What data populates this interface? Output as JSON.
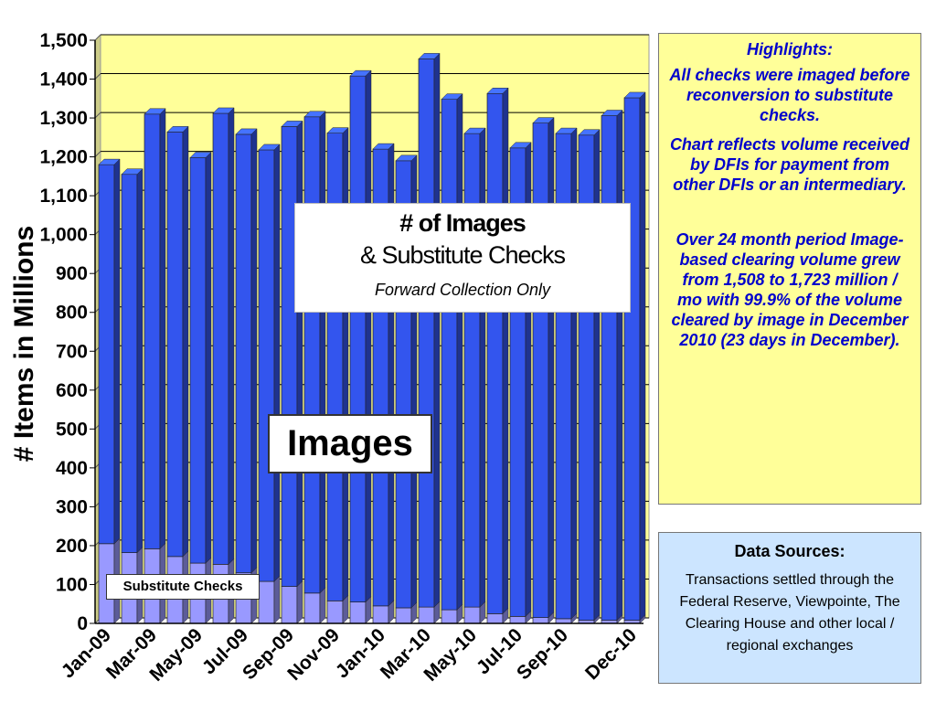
{
  "chart_data": {
    "type": "bar",
    "stacked": true,
    "categories": [
      "Jan-09",
      "Feb-09",
      "Mar-09",
      "Apr-09",
      "May-09",
      "Jun-09",
      "Jul-09",
      "Aug-09",
      "Sep-09",
      "Oct-09",
      "Nov-09",
      "Dec-09",
      "Jan-10",
      "Feb-10",
      "Mar-10",
      "Apr-10",
      "May-10",
      "Jun-10",
      "Jul-10",
      "Aug-10",
      "Sep-10",
      "Oct-10",
      "Nov-10",
      "Dec-10"
    ],
    "x_tick_labels": [
      "Jan-09",
      "Mar-09",
      "May-09",
      "Jul-09",
      "Sep-09",
      "Nov-09",
      "Jan-10",
      "Mar-10",
      "May-10",
      "Jul-10",
      "Sep-10",
      "Dec-10"
    ],
    "x_tick_indices": [
      0,
      2,
      4,
      6,
      8,
      10,
      12,
      14,
      16,
      18,
      20,
      23
    ],
    "series": [
      {
        "name": "Substitute Checks",
        "color": "#9999ff",
        "values": [
          205,
          182,
          192,
          172,
          155,
          152,
          130,
          108,
          95,
          78,
          58,
          55,
          45,
          40,
          42,
          35,
          42,
          25,
          18,
          15,
          12,
          8,
          8,
          8
        ]
      },
      {
        "name": "Images",
        "color": "#3355ee",
        "values": [
          975,
          973,
          1118,
          1092,
          1043,
          1160,
          1128,
          1110,
          1183,
          1225,
          1203,
          1353,
          1175,
          1150,
          1410,
          1313,
          1218,
          1338,
          1205,
          1272,
          1248,
          1248,
          1298,
          1344
        ]
      }
    ],
    "ylabel": "# Items in Millions",
    "ylim": [
      0,
      1500
    ],
    "yticks": [
      0,
      100,
      200,
      300,
      400,
      500,
      600,
      700,
      800,
      900,
      1000,
      1100,
      1200,
      1300,
      1400,
      1500
    ],
    "ytick_labels": [
      "0",
      "100",
      "200",
      "300",
      "400",
      "500",
      "600",
      "700",
      "800",
      "900",
      "1,000",
      "1,100",
      "1,200",
      "1,300",
      "1,400",
      "1,500"
    ],
    "title": "# of Images",
    "subtitle": "& Substitute Checks",
    "subtitle2": "Forward Collection Only",
    "grid": true,
    "plot_background": "#ffff99",
    "annotation_images": "Images"
  },
  "highlights": {
    "title": "Highlights:",
    "p1": "All checks were imaged before reconversion to substitute checks.",
    "p2": "Chart reflects volume received by DFIs for payment from other DFIs or an intermediary.",
    "p3": "Over 24 month period Image-based clearing volume grew from 1,508 to 1,723 million / mo with 99.9% of the volume cleared by image in December 2010 (23 days in December)."
  },
  "sources": {
    "title": "Data Sources:",
    "text": "Transactions settled through the Federal Reserve, Viewpointe, The Clearing House and other local / regional exchanges"
  }
}
